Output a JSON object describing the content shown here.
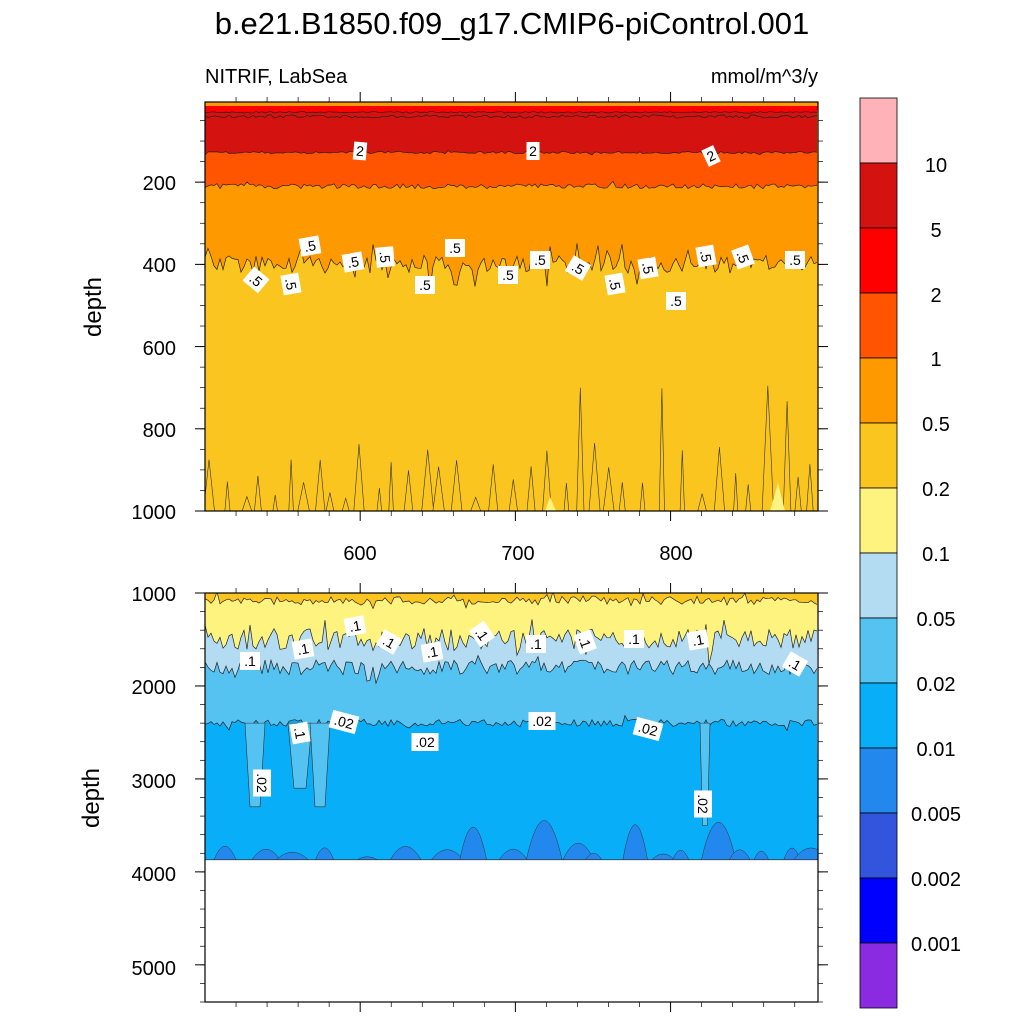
{
  "figure": {
    "title": "b.e21.B1850.f09_g17.CMIP6-piControl.001",
    "left_label": "NITRIF, LabSea",
    "right_label": "mmol/m^3/y"
  },
  "chart_data": [
    {
      "type": "heatmap",
      "panel": "upper",
      "variable": "NITRIF",
      "region": "LabSea",
      "units": "mmol/m^3/y",
      "ylabel": "depth",
      "xlabel": "",
      "xlim": [
        500,
        895
      ],
      "ylim": [
        1000,
        5
      ],
      "x_ticks": [
        600,
        700,
        800
      ],
      "y_ticks": [
        200,
        400,
        600,
        800,
        1000
      ],
      "contour_bands": [
        {
          "from": 5,
          "to": 10,
          "depth_range": [
            5,
            30
          ]
        },
        {
          "from": 2,
          "to": 5,
          "depth_range": [
            30,
            130
          ]
        },
        {
          "from": 1,
          "to": 2,
          "depth_range": [
            130,
            210
          ]
        },
        {
          "from": 0.5,
          "to": 1,
          "depth_range": [
            210,
            400
          ]
        },
        {
          "from": 0.2,
          "to": 0.5,
          "depth_range": [
            400,
            1000
          ]
        },
        {
          "from": 0.1,
          "to": 0.2,
          "depth_range": [
            960,
            1000
          ]
        }
      ],
      "contour_labels": [
        "2",
        "2",
        "2",
        ".5",
        ".5",
        ".5",
        ".5",
        ".5",
        ".5",
        ".5",
        ".5",
        ".5",
        ".5",
        ".5",
        ".5",
        ".5",
        ".5",
        ".5",
        ".5",
        ".5"
      ]
    },
    {
      "type": "heatmap",
      "panel": "lower",
      "variable": "NITRIF",
      "region": "LabSea",
      "units": "mmol/m^3/y",
      "ylabel": "depth",
      "xlabel": "",
      "xlim": [
        500,
        895
      ],
      "ylim": [
        5400,
        1000
      ],
      "x_ticks": [
        600,
        700,
        800
      ],
      "y_ticks": [
        1000,
        2000,
        3000,
        4000,
        5000
      ],
      "ocean_floor_depth": 3870,
      "contour_bands": [
        {
          "from": 0.1,
          "to": 0.2,
          "depth_range": [
            1000,
            1600
          ]
        },
        {
          "from": 0.05,
          "to": 0.1,
          "depth_range": [
            1600,
            1900
          ]
        },
        {
          "from": 0.02,
          "to": 0.05,
          "depth_range": [
            1900,
            2420
          ]
        },
        {
          "from": 0.01,
          "to": 0.02,
          "depth_range": [
            2420,
            3870
          ]
        },
        {
          "from": 0.005,
          "to": 0.01,
          "depth_range": [
            3450,
            3870
          ]
        }
      ],
      "contour_labels": [
        ".1",
        ".1",
        ".1",
        ".1",
        ".1",
        ".1",
        ".1",
        ".1",
        ".1",
        ".1",
        ".1",
        ".1",
        ".02",
        ".02",
        ".02",
        ".02",
        ".02",
        ".02",
        ".02"
      ]
    }
  ],
  "colorbar": {
    "levels": [
      "10",
      "5",
      "2",
      "1",
      "0.5",
      "0.2",
      "0.1",
      "0.05",
      "0.02",
      "0.01",
      "0.005",
      "0.002",
      "0.001"
    ],
    "colors": [
      "#ffb3b8",
      "#d4120f",
      "#ff0000",
      "#ff5500",
      "#ff9900",
      "#fbc51f",
      "#fff380",
      "#b3dcf2",
      "#55c3f2",
      "#08aef8",
      "#2288ee",
      "#3355dd",
      "#0000ff",
      "#8a2be2"
    ]
  }
}
